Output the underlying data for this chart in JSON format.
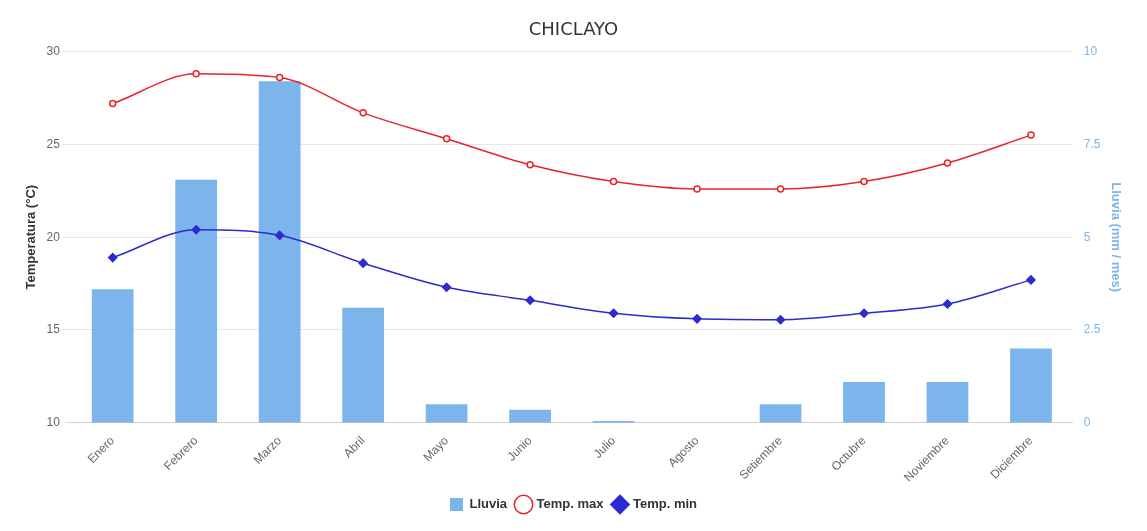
{
  "chart_data": {
    "type": "bar",
    "title": "CHICLAYO",
    "ylabel": "Temperatura (°C)",
    "y2label": "Lluvia (mm / mes)",
    "categories": [
      "Enero",
      "Febrero",
      "Marzo",
      "Abril",
      "Mayo",
      "Junio",
      "Julio",
      "Agosto",
      "Setiembre",
      "Octubre",
      "Noviembre",
      "Diciembre"
    ],
    "series": [
      {
        "name": "Lluvia",
        "axis": "y2",
        "color": "#7cb5ec",
        "values": [
          3.6,
          6.55,
          9.2,
          3.1,
          0.5,
          0.35,
          0.05,
          0,
          0.5,
          1.1,
          1.1,
          2.0
        ]
      },
      {
        "name": "Temp. max",
        "type": "line",
        "marker": "circle",
        "color": "#e8232a",
        "values": [
          27.2,
          28.8,
          28.6,
          26.7,
          25.3,
          23.9,
          23.0,
          22.6,
          22.6,
          23.0,
          24.0,
          25.5
        ]
      },
      {
        "name": "Temp. min",
        "type": "line",
        "marker": "diamond",
        "color": "#2b2bd0",
        "values": [
          18.9,
          20.4,
          20.1,
          18.6,
          17.3,
          16.6,
          15.9,
          15.6,
          15.55,
          15.9,
          16.4,
          17.7
        ]
      }
    ],
    "ylim": [
      10,
      30
    ],
    "yticks": [
      10,
      15,
      20,
      25,
      30
    ],
    "y2lim": [
      0,
      10
    ],
    "y2ticks": [
      0,
      2.5,
      5,
      7.5,
      10
    ],
    "grid": "y",
    "legend": "bottom"
  }
}
